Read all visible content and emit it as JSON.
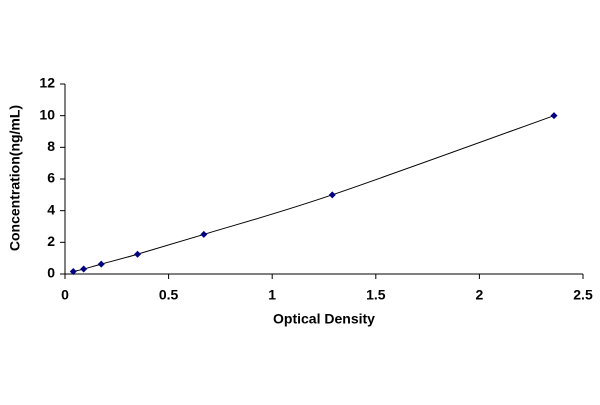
{
  "chart_data": {
    "type": "line",
    "x_label": "Optical Density",
    "y_label": "Concentration(ng/mL)",
    "x": [
      0.04,
      0.09,
      0.175,
      0.35,
      0.67,
      1.29,
      2.36
    ],
    "y": [
      0.156,
      0.312,
      0.625,
      1.25,
      2.5,
      5,
      10
    ],
    "color": "#000080",
    "line_color": "#000000",
    "marker": "diamond",
    "xlim": [
      0,
      2.5
    ],
    "xticks": [
      0,
      0.5,
      1,
      1.5,
      2,
      2.5
    ],
    "ylim": [
      0,
      12
    ],
    "yticks": [
      0,
      2,
      4,
      6,
      8,
      10,
      12
    ],
    "grid": false
  }
}
